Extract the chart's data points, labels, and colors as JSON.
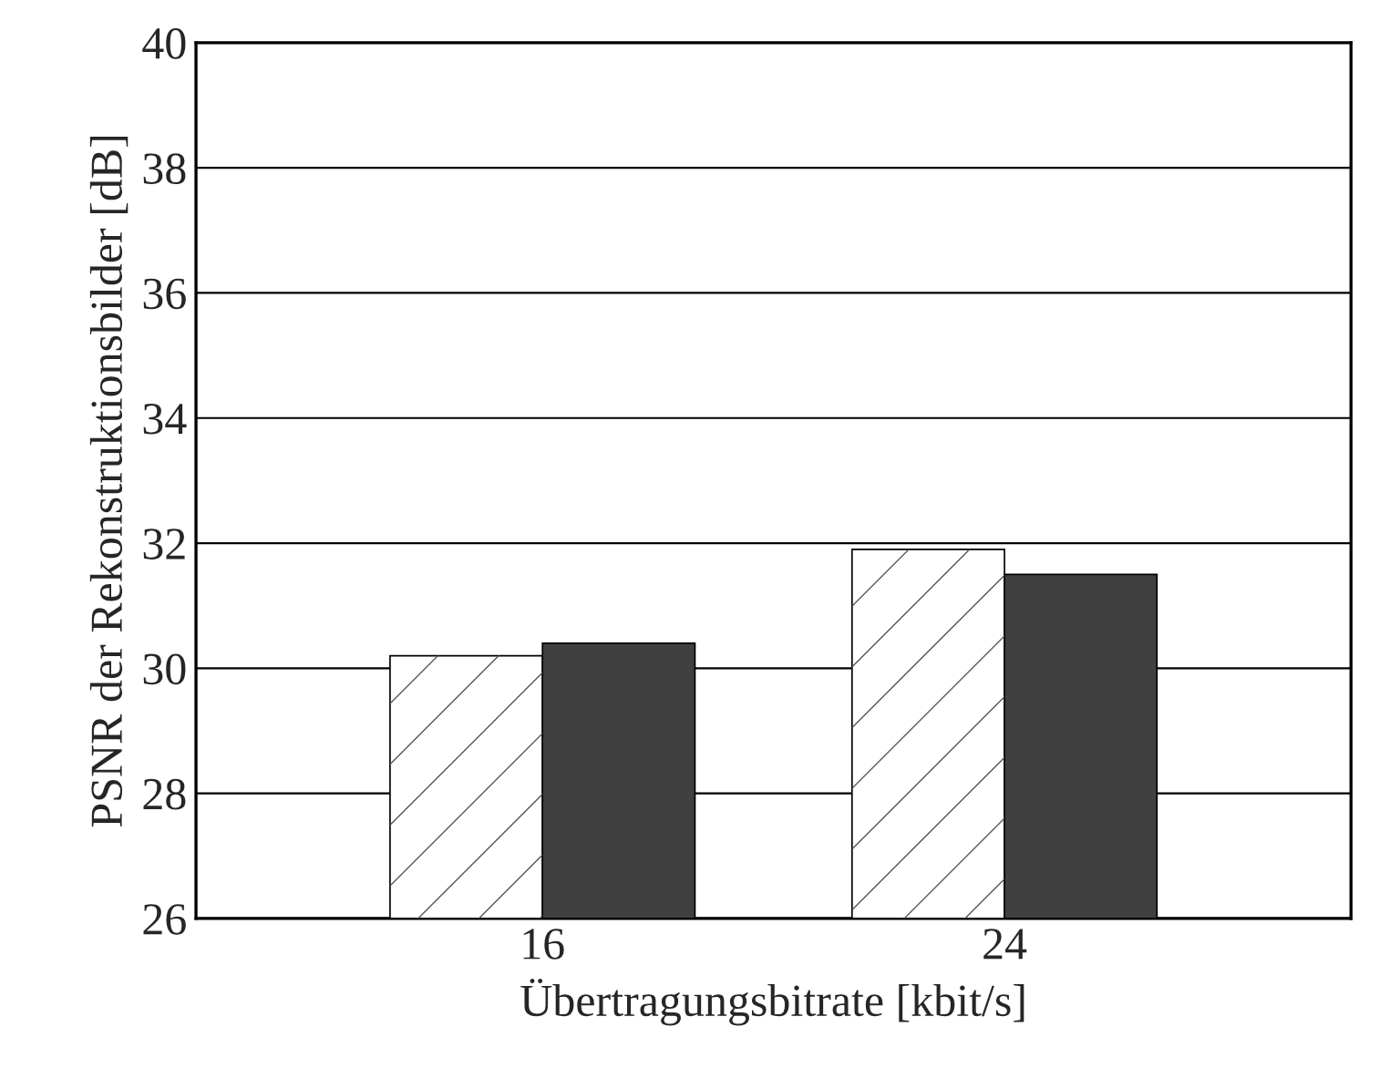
{
  "chart_data": {
    "type": "bar",
    "xlabel": "Übertragungsbitrate [kbit/s]",
    "ylabel": "PSNR der Rekonstruktionsbilder [dB]",
    "categories": [
      "16",
      "24"
    ],
    "series": [
      {
        "color": "#ffffff",
        "values": [
          30.2,
          31.9
        ]
      },
      {
        "color": "#404040",
        "values": [
          30.4,
          31.5
        ]
      }
    ],
    "ylim": [
      26,
      40
    ],
    "yticks": [
      26,
      28,
      30,
      32,
      34,
      36,
      38,
      40
    ],
    "grid": "y",
    "legend": false
  }
}
